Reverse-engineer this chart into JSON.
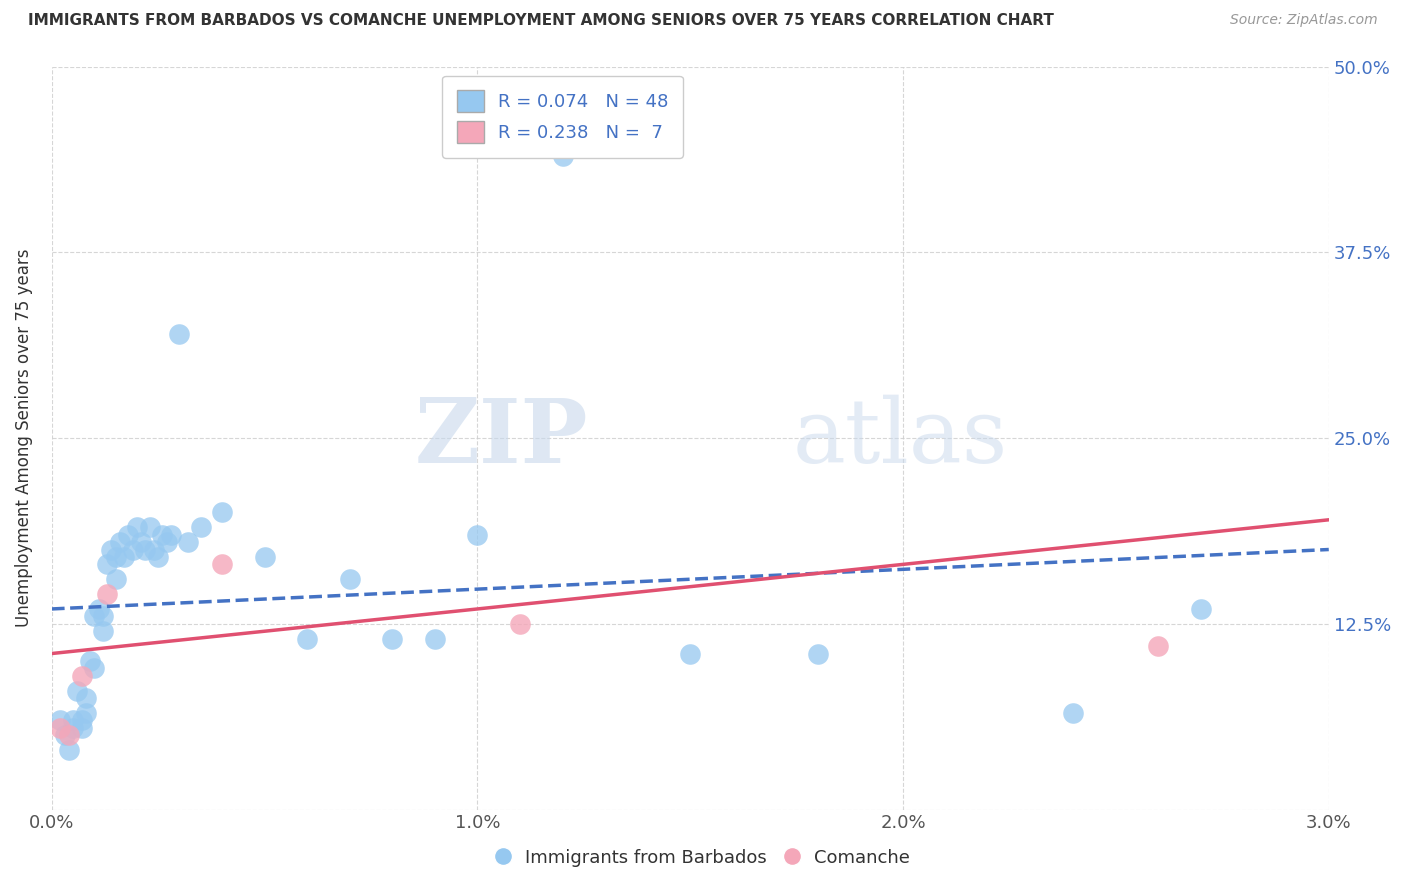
{
  "title": "IMMIGRANTS FROM BARBADOS VS COMANCHE UNEMPLOYMENT AMONG SENIORS OVER 75 YEARS CORRELATION CHART",
  "source": "Source: ZipAtlas.com",
  "xlabel": "",
  "ylabel": "Unemployment Among Seniors over 75 years",
  "xlim": [
    0.0,
    0.03
  ],
  "ylim": [
    0.0,
    0.5
  ],
  "xticks": [
    0.0,
    0.01,
    0.02,
    0.03
  ],
  "xtick_labels": [
    "0.0%",
    "1.0%",
    "2.0%",
    "3.0%"
  ],
  "yticks": [
    0.0,
    0.125,
    0.25,
    0.375,
    0.5
  ],
  "ytick_labels": [
    "",
    "12.5%",
    "25.0%",
    "37.5%",
    "50.0%"
  ],
  "blue_R": 0.074,
  "blue_N": 48,
  "pink_R": 0.238,
  "pink_N": 7,
  "blue_color": "#96C8F0",
  "pink_color": "#F4A7B9",
  "blue_line_color": "#4472C4",
  "pink_line_color": "#E05070",
  "watermark_zip": "ZIP",
  "watermark_atlas": "atlas",
  "background_color": "#FFFFFF",
  "blue_x": [
    0.0002,
    0.0003,
    0.0004,
    0.0005,
    0.0005,
    0.0006,
    0.0007,
    0.0007,
    0.0008,
    0.0008,
    0.0009,
    0.001,
    0.001,
    0.0011,
    0.0012,
    0.0012,
    0.0013,
    0.0014,
    0.0015,
    0.0015,
    0.0016,
    0.0017,
    0.0018,
    0.0019,
    0.002,
    0.0021,
    0.0022,
    0.0023,
    0.0024,
    0.0025,
    0.0026,
    0.0027,
    0.0028,
    0.003,
    0.0032,
    0.0035,
    0.004,
    0.005,
    0.006,
    0.007,
    0.008,
    0.009,
    0.01,
    0.012,
    0.015,
    0.018,
    0.024,
    0.027
  ],
  "blue_y": [
    0.06,
    0.05,
    0.04,
    0.06,
    0.055,
    0.08,
    0.06,
    0.055,
    0.075,
    0.065,
    0.1,
    0.13,
    0.095,
    0.135,
    0.13,
    0.12,
    0.165,
    0.175,
    0.155,
    0.17,
    0.18,
    0.17,
    0.185,
    0.175,
    0.19,
    0.18,
    0.175,
    0.19,
    0.175,
    0.17,
    0.185,
    0.18,
    0.185,
    0.32,
    0.18,
    0.19,
    0.2,
    0.17,
    0.115,
    0.155,
    0.115,
    0.115,
    0.185,
    0.44,
    0.105,
    0.105,
    0.065,
    0.135
  ],
  "pink_x": [
    0.0002,
    0.0004,
    0.0007,
    0.0013,
    0.004,
    0.011,
    0.026
  ],
  "pink_y": [
    0.055,
    0.05,
    0.09,
    0.145,
    0.165,
    0.125,
    0.11
  ],
  "blue_trend_x0": 0.0,
  "blue_trend_x1": 0.03,
  "blue_trend_y0": 0.135,
  "blue_trend_y1": 0.175,
  "pink_trend_x0": 0.0,
  "pink_trend_x1": 0.03,
  "pink_trend_y0": 0.105,
  "pink_trend_y1": 0.195
}
